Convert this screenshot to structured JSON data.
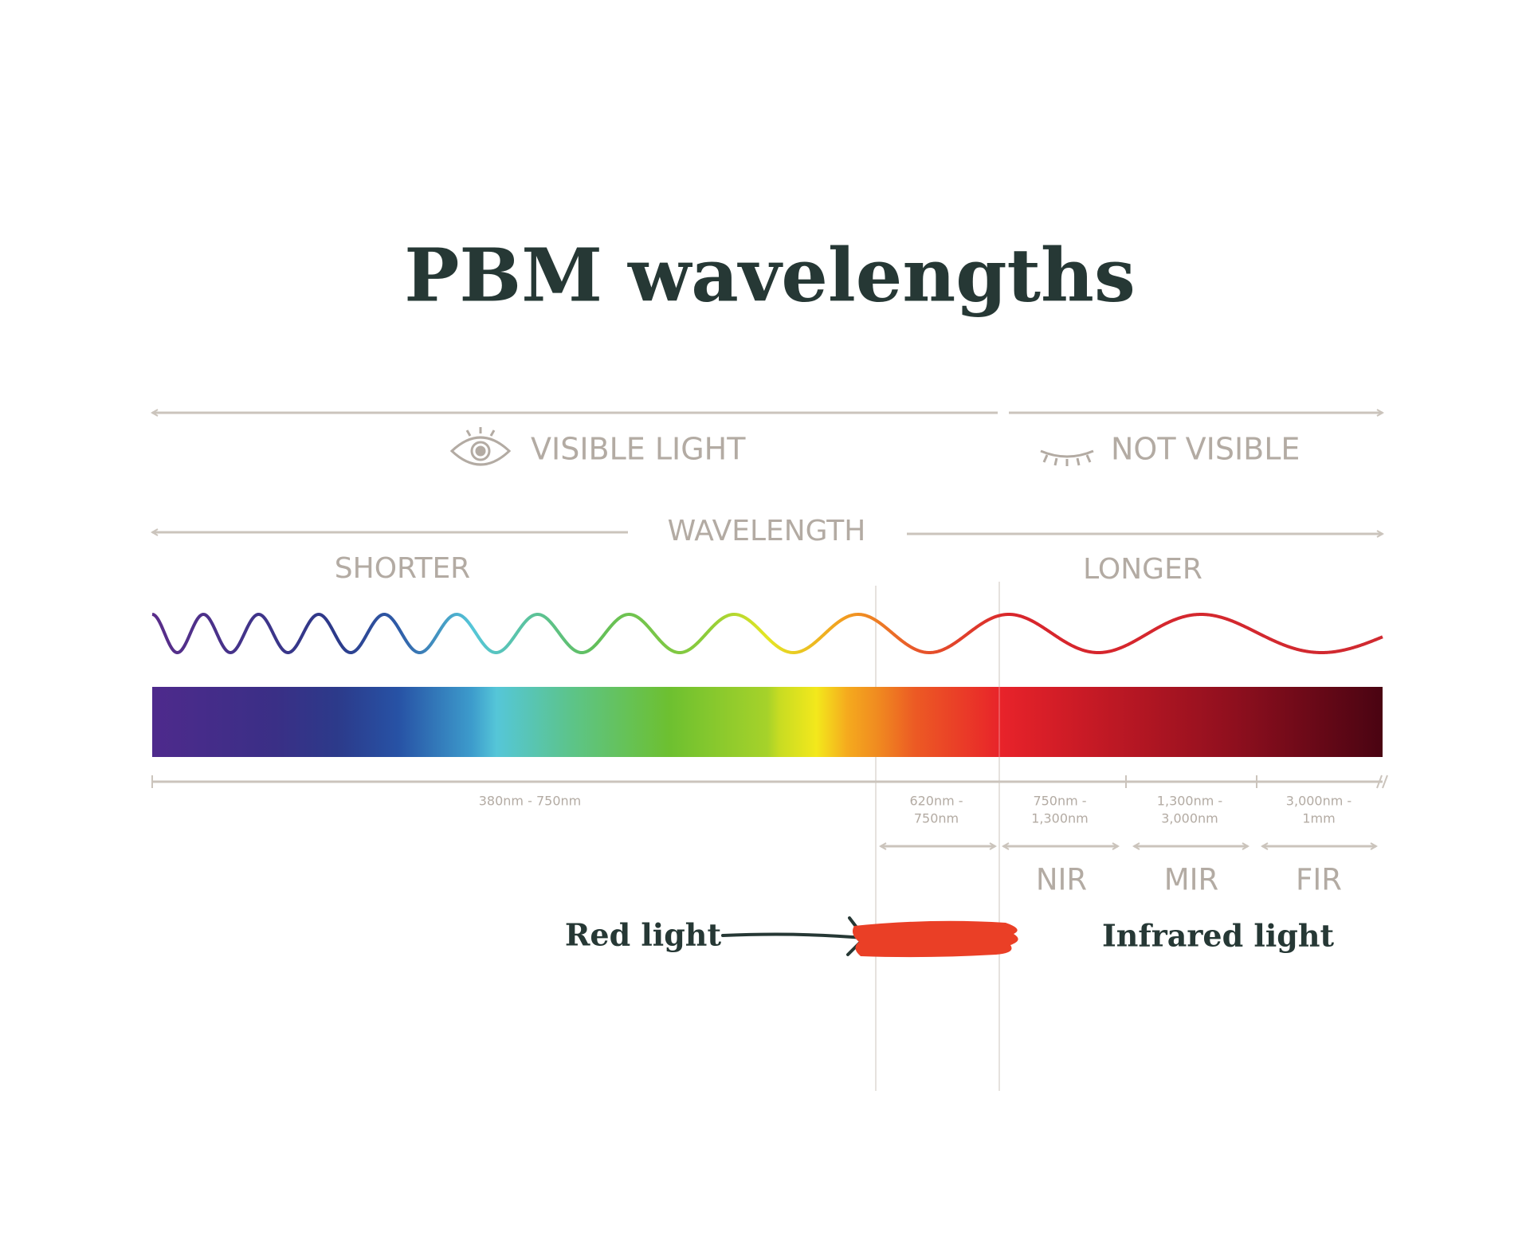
{
  "title": "PBM wavelengths",
  "visibility": {
    "visible": "VISIBLE LIGHT",
    "not_visible": "NOT VISIBLE"
  },
  "wavelength": {
    "label": "WAVELENGTH",
    "shorter": "SHORTER",
    "longer": "LONGER"
  },
  "ranges": [
    {
      "lines": [
        "380nm - 750nm"
      ]
    },
    {
      "lines": [
        "620nm -",
        "750nm"
      ]
    },
    {
      "lines": [
        "750nm -",
        "1,300nm"
      ]
    },
    {
      "lines": [
        "1,300nm -",
        "3,000nm"
      ]
    },
    {
      "lines": [
        "3,000nm -",
        "1mm"
      ]
    }
  ],
  "bands": [
    "NIR",
    "MIR",
    "FIR"
  ],
  "callouts": {
    "red": "Red light",
    "infrared": "Infrared light"
  }
}
